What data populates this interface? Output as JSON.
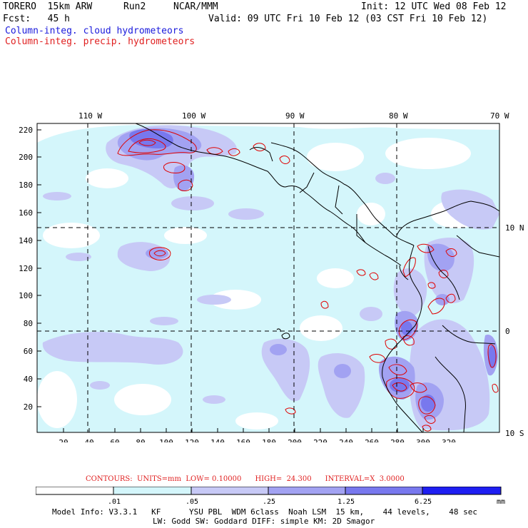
{
  "header": {
    "model": "TORERO  15km ARW",
    "run": "Run2",
    "org": "NCAR/MMM",
    "init": "Init: 12 UTC Wed 08 Feb 12",
    "fcst": "Fcst:   45 h",
    "valid": "Valid: 09 UTC Fri 10 Feb 12 (03 CST Fri 10 Feb 12)",
    "field_blue": "Column-integ. cloud hydrometeors",
    "field_red": "Column-integ. precip. hydrometeors"
  },
  "colors": {
    "blue_text": "#1a1adc",
    "red_text": "#e02020",
    "level1": "#d4f6fb",
    "level2": "#c7c9f6",
    "level3": "#a2a2f2",
    "level4": "#7878ee",
    "level5": "#4a4af0",
    "level6": "#1e1ef2",
    "contour": "#e00000"
  },
  "map": {
    "top_lon_labels": [
      "110 W",
      "100 W",
      "90 W",
      "80 W",
      "70 W"
    ],
    "right_lat_labels": [
      "10 N",
      "0",
      "10 S"
    ],
    "y_ticks": [
      "220",
      "200",
      "180",
      "160",
      "140",
      "120",
      "100",
      "80",
      "60",
      "40",
      "20"
    ],
    "x_ticks": [
      "20",
      "40",
      "60",
      "80",
      "100",
      "120",
      "140",
      "160",
      "180",
      "200",
      "220",
      "240",
      "260",
      "280",
      "300",
      "320"
    ]
  },
  "contours_info": {
    "text": "CONTOURS:  UNITS=mm  LOW= 0.10000      HIGH=  24.300      INTERVAL=X  3.0000"
  },
  "colorbar": {
    "labels": [
      ".01",
      ".05",
      ".25",
      "1.25",
      "6.25"
    ],
    "unit": "mm"
  },
  "footer": {
    "line1": "Model Info: V3.3.1   KF      YSU PBL  WDM 6class  Noah LSM  15 km,    44 levels,    48 sec",
    "line2": "LW: Godd SW: Goddard DIFF: simple KM: 2D Smagor"
  }
}
